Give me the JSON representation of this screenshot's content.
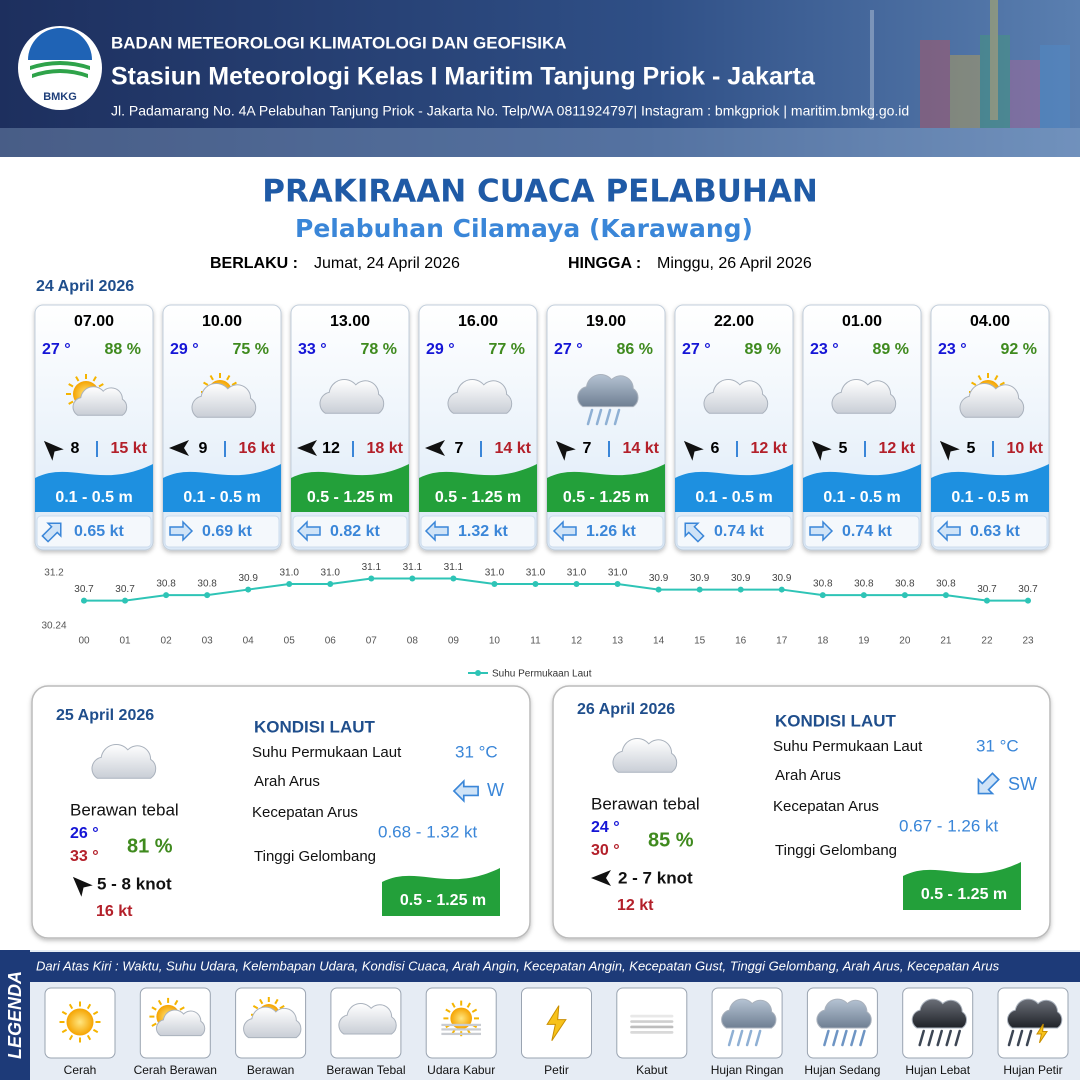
{
  "header": {
    "logo": "BMKG",
    "org": "BADAN METEOROLOGI KLIMATOLOGI DAN GEOFISIKA",
    "station": "Stasiun Meteorologi Kelas I Maritim Tanjung Priok - Jakarta",
    "address": "Jl. Padamarang No. 4A Pelabuhan Tanjung Priok - Jakarta No. Telp/WA 0811924797| Instagram : bmkgpriok | maritim.bmkg.go.id"
  },
  "title": "PRAKIRAAN CUACA PELABUHAN",
  "subtitle": "Pelabuhan Cilamaya (Karawang)",
  "validity": {
    "from_label": "BERLAKU :",
    "from": "Jumat, 24 April 2026",
    "to_label": "HINGGA :",
    "to": "Minggu, 26 April 2026"
  },
  "today": {
    "date": "24 April 2026",
    "forecasts": [
      {
        "time": "07.00",
        "temp": "27 °",
        "humidity": "88 %",
        "wind": 8,
        "gust": "15 kt",
        "wave": "0.1 - 0.5 m",
        "current": "0.65 kt"
      },
      {
        "time": "10.00",
        "temp": "29 °",
        "humidity": "75 %",
        "wind": 9,
        "gust": "16 kt",
        "wave": "0.1 - 0.5 m",
        "current": "0.69 kt"
      },
      {
        "time": "13.00",
        "temp": "33 °",
        "humidity": "78 %",
        "wind": 12,
        "gust": "18 kt",
        "wave": "0.5 - 1.25 m",
        "current": "0.82 kt"
      },
      {
        "time": "16.00",
        "temp": "29 °",
        "humidity": "77 %",
        "wind": 7,
        "gust": "14 kt",
        "wave": "0.5 - 1.25 m",
        "current": "1.32 kt"
      },
      {
        "time": "19.00",
        "temp": "27 °",
        "humidity": "86 %",
        "wind": 7,
        "gust": "14 kt",
        "wave": "0.5 - 1.25 m",
        "current": "1.26 kt"
      },
      {
        "time": "22.00",
        "temp": "27 °",
        "humidity": "89 %",
        "wind": 6,
        "gust": "12 kt",
        "wave": "0.1 - 0.5 m",
        "current": "0.74 kt"
      },
      {
        "time": "01.00",
        "temp": "23 °",
        "humidity": "89 %",
        "wind": 5,
        "gust": "12 kt",
        "wave": "0.1 - 0.5 m",
        "current": "0.74 kt"
      },
      {
        "time": "04.00",
        "temp": "23 °",
        "humidity": "92 %",
        "wind": 5,
        "gust": "10 kt",
        "wave": "0.1 - 0.5 m",
        "current": "0.63 kt"
      }
    ]
  },
  "chart_data": {
    "type": "line",
    "categories": [
      "00",
      "01",
      "02",
      "03",
      "04",
      "05",
      "06",
      "07",
      "08",
      "09",
      "10",
      "11",
      "12",
      "13",
      "14",
      "15",
      "16",
      "17",
      "18",
      "19",
      "20",
      "21",
      "22",
      "23"
    ],
    "series": [
      {
        "name": "Suhu Permukaan Laut",
        "color": "#2ec4b6",
        "values": [
          30.7,
          30.7,
          30.8,
          30.8,
          30.9,
          31.0,
          31.0,
          31.1,
          31.1,
          31.1,
          31.0,
          31.0,
          31.0,
          31.0,
          30.9,
          30.9,
          30.9,
          30.9,
          30.8,
          30.8,
          30.8,
          30.8,
          30.7,
          30.7
        ],
        "value_labels": [
          "30.7",
          "30.7",
          "30.8",
          "30.8",
          "30.9",
          "31.0",
          "31.0",
          "31.1",
          "31.1",
          "31.1",
          "31.0",
          "31.0",
          "31.0",
          "31.0",
          "30.9",
          "30.9",
          "30.9",
          "30.9",
          "30.8",
          "30.8",
          "30.8",
          "30.8",
          "30.7",
          "30.7"
        ]
      }
    ],
    "ylim": [
      30.24,
      31.2
    ],
    "yticks": [
      30.24,
      31.2
    ]
  },
  "days": [
    {
      "date": "25 April 2026",
      "condition": "Berawan tebal",
      "temp_min": "26 °",
      "temp_max": "33 °",
      "humidity": "81 %",
      "wind": "5 - 8 knot",
      "gust": "16 kt",
      "sea_title": "KONDISI LAUT",
      "sst_label": "Suhu Permukaan Laut",
      "sst": "31 °C",
      "current_dir_label": "Arah Arus",
      "current_dir": "W",
      "current_speed_label": "Kecepatan Arus",
      "current_speed": "0.68 - 1.32 kt",
      "wave_label": "Tinggi Gelombang",
      "wave": "0.5 - 1.25 m"
    },
    {
      "date": "26 April 2026",
      "condition": "Berawan tebal",
      "temp_min": "24 °",
      "temp_max": "30 °",
      "humidity": "85 %",
      "wind": "2 - 7 knot",
      "gust": "12 kt",
      "sea_title": "KONDISI LAUT",
      "sst_label": "Suhu Permukaan Laut",
      "sst": "31 °C",
      "current_dir_label": "Arah Arus",
      "current_dir": "SW",
      "current_speed_label": "Kecepatan Arus",
      "current_speed": "0.67 - 1.26 kt",
      "wave_label": "Tinggi Gelombang",
      "wave": "0.5 - 1.25 m"
    }
  ],
  "legend": {
    "title": "LEGENDA",
    "description": "Dari Atas Kiri : Waktu, Suhu Udara, Kelembapan Udara, Kondisi Cuaca, Arah Angin, Kecepatan Angin, Kecepatan Gust, Tinggi Gelombang, Arah Arus, Kecepatan Arus",
    "items": [
      "Cerah",
      "Cerah Berawan",
      "Berawan",
      "Berawan Tebal",
      "Udara Kabur",
      "Petir",
      "Kabut",
      "Hujan Ringan",
      "Hujan Sedang",
      "Hujan Lebat",
      "Hujan Petir"
    ]
  }
}
